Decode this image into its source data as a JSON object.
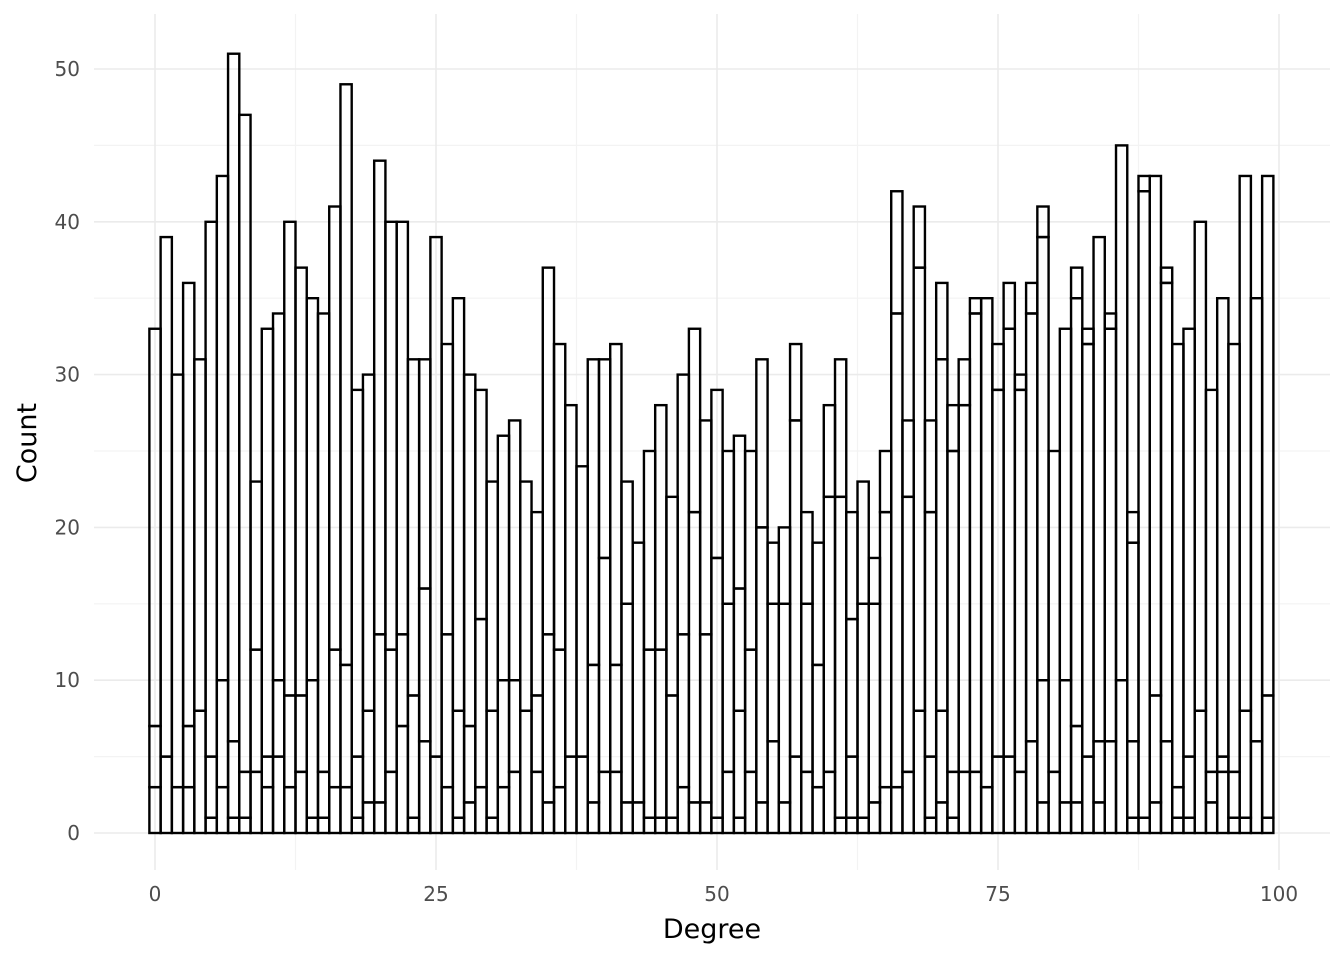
{
  "chart_data": {
    "type": "bar",
    "xlabel": "Degree",
    "ylabel": "Count",
    "xlim": [
      -2.5,
      102
    ],
    "ylim": [
      -2.5,
      53.5
    ],
    "x_ticks": [
      0,
      25,
      50,
      75,
      100
    ],
    "y_ticks": [
      0,
      10,
      20,
      30,
      40,
      50
    ],
    "grid": true,
    "legend": "none",
    "bar_fill": "#ffffff",
    "bar_outline": "#000000",
    "bars": [
      {
        "x": 0,
        "stack": [
          3,
          7,
          33
        ]
      },
      {
        "x": 1,
        "stack": [
          5,
          39
        ]
      },
      {
        "x": 2,
        "stack": [
          3,
          30
        ]
      },
      {
        "x": 3,
        "stack": [
          3,
          7,
          36
        ]
      },
      {
        "x": 4,
        "stack": [
          8,
          31
        ]
      },
      {
        "x": 5,
        "stack": [
          1,
          5,
          40
        ]
      },
      {
        "x": 6,
        "stack": [
          3,
          10,
          43
        ]
      },
      {
        "x": 7,
        "stack": [
          1,
          6,
          51
        ]
      },
      {
        "x": 8,
        "stack": [
          1,
          4,
          47
        ]
      },
      {
        "x": 9,
        "stack": [
          4,
          12,
          23
        ]
      },
      {
        "x": 10,
        "stack": [
          3,
          5,
          33
        ]
      },
      {
        "x": 11,
        "stack": [
          5,
          10,
          34
        ]
      },
      {
        "x": 12,
        "stack": [
          3,
          9,
          40
        ]
      },
      {
        "x": 13,
        "stack": [
          4,
          9,
          37
        ]
      },
      {
        "x": 14,
        "stack": [
          1,
          10,
          35
        ]
      },
      {
        "x": 15,
        "stack": [
          1,
          4,
          34
        ]
      },
      {
        "x": 16,
        "stack": [
          3,
          12,
          41
        ]
      },
      {
        "x": 17,
        "stack": [
          3,
          11,
          49
        ]
      },
      {
        "x": 18,
        "stack": [
          1,
          5,
          29
        ]
      },
      {
        "x": 19,
        "stack": [
          2,
          8,
          30
        ]
      },
      {
        "x": 20,
        "stack": [
          2,
          13,
          44
        ]
      },
      {
        "x": 21,
        "stack": [
          4,
          12,
          40
        ]
      },
      {
        "x": 22,
        "stack": [
          7,
          13,
          40
        ]
      },
      {
        "x": 23,
        "stack": [
          1,
          9,
          31
        ]
      },
      {
        "x": 24,
        "stack": [
          6,
          16,
          31
        ]
      },
      {
        "x": 25,
        "stack": [
          5,
          39
        ]
      },
      {
        "x": 26,
        "stack": [
          3,
          13,
          32
        ]
      },
      {
        "x": 27,
        "stack": [
          1,
          8,
          35
        ]
      },
      {
        "x": 28,
        "stack": [
          2,
          7,
          30
        ]
      },
      {
        "x": 29,
        "stack": [
          3,
          14,
          29
        ]
      },
      {
        "x": 30,
        "stack": [
          1,
          8,
          23
        ]
      },
      {
        "x": 31,
        "stack": [
          3,
          10,
          26
        ]
      },
      {
        "x": 32,
        "stack": [
          4,
          10,
          27
        ]
      },
      {
        "x": 33,
        "stack": [
          8,
          23
        ]
      },
      {
        "x": 34,
        "stack": [
          4,
          9,
          21
        ]
      },
      {
        "x": 35,
        "stack": [
          2,
          13,
          37
        ]
      },
      {
        "x": 36,
        "stack": [
          3,
          12,
          32
        ]
      },
      {
        "x": 37,
        "stack": [
          5,
          28
        ]
      },
      {
        "x": 38,
        "stack": [
          5,
          24
        ]
      },
      {
        "x": 39,
        "stack": [
          2,
          11,
          31
        ]
      },
      {
        "x": 40,
        "stack": [
          4,
          18,
          31
        ]
      },
      {
        "x": 41,
        "stack": [
          4,
          11,
          32
        ]
      },
      {
        "x": 42,
        "stack": [
          2,
          15,
          23
        ]
      },
      {
        "x": 43,
        "stack": [
          2,
          19
        ]
      },
      {
        "x": 44,
        "stack": [
          1,
          12,
          25
        ]
      },
      {
        "x": 45,
        "stack": [
          1,
          12,
          28
        ]
      },
      {
        "x": 46,
        "stack": [
          1,
          9,
          22
        ]
      },
      {
        "x": 47,
        "stack": [
          3,
          13,
          30
        ]
      },
      {
        "x": 48,
        "stack": [
          2,
          21,
          33
        ]
      },
      {
        "x": 49,
        "stack": [
          2,
          13,
          27
        ]
      },
      {
        "x": 50,
        "stack": [
          1,
          18,
          29
        ]
      },
      {
        "x": 51,
        "stack": [
          4,
          15,
          25
        ]
      },
      {
        "x": 52,
        "stack": [
          1,
          8,
          16,
          26
        ]
      },
      {
        "x": 53,
        "stack": [
          4,
          12,
          25
        ]
      },
      {
        "x": 54,
        "stack": [
          2,
          20,
          31
        ]
      },
      {
        "x": 55,
        "stack": [
          6,
          15,
          19
        ]
      },
      {
        "x": 56,
        "stack": [
          2,
          15,
          20
        ]
      },
      {
        "x": 57,
        "stack": [
          5,
          27,
          32
        ]
      },
      {
        "x": 58,
        "stack": [
          4,
          15,
          21
        ]
      },
      {
        "x": 59,
        "stack": [
          3,
          11,
          19
        ]
      },
      {
        "x": 60,
        "stack": [
          4,
          22,
          28
        ]
      },
      {
        "x": 61,
        "stack": [
          1,
          22,
          31
        ]
      },
      {
        "x": 62,
        "stack": [
          1,
          5,
          14,
          21
        ]
      },
      {
        "x": 63,
        "stack": [
          1,
          15,
          23
        ]
      },
      {
        "x": 64,
        "stack": [
          2,
          15,
          18
        ]
      },
      {
        "x": 65,
        "stack": [
          3,
          21,
          25
        ]
      },
      {
        "x": 66,
        "stack": [
          3,
          34,
          42
        ]
      },
      {
        "x": 67,
        "stack": [
          4,
          22,
          27
        ]
      },
      {
        "x": 68,
        "stack": [
          8,
          37,
          41
        ]
      },
      {
        "x": 69,
        "stack": [
          1,
          5,
          21,
          27
        ]
      },
      {
        "x": 70,
        "stack": [
          2,
          8,
          31,
          36
        ]
      },
      {
        "x": 71,
        "stack": [
          1,
          4,
          25,
          28
        ]
      },
      {
        "x": 72,
        "stack": [
          4,
          28,
          31
        ]
      },
      {
        "x": 73,
        "stack": [
          4,
          34,
          35
        ]
      },
      {
        "x": 74,
        "stack": [
          3,
          35
        ]
      },
      {
        "x": 75,
        "stack": [
          5,
          29,
          32
        ]
      },
      {
        "x": 76,
        "stack": [
          5,
          33,
          36
        ]
      },
      {
        "x": 77,
        "stack": [
          4,
          29,
          30
        ]
      },
      {
        "x": 78,
        "stack": [
          6,
          34,
          36
        ]
      },
      {
        "x": 79,
        "stack": [
          2,
          10,
          39,
          41
        ]
      },
      {
        "x": 80,
        "stack": [
          4,
          25
        ]
      },
      {
        "x": 81,
        "stack": [
          2,
          10,
          33
        ]
      },
      {
        "x": 82,
        "stack": [
          2,
          7,
          35,
          37
        ]
      },
      {
        "x": 83,
        "stack": [
          5,
          32,
          33
        ]
      },
      {
        "x": 84,
        "stack": [
          2,
          6,
          39
        ]
      },
      {
        "x": 85,
        "stack": [
          6,
          33,
          34
        ]
      },
      {
        "x": 86,
        "stack": [
          10,
          45
        ]
      },
      {
        "x": 87,
        "stack": [
          1,
          6,
          19,
          21
        ]
      },
      {
        "x": 88,
        "stack": [
          1,
          42,
          43
        ]
      },
      {
        "x": 89,
        "stack": [
          2,
          9,
          43
        ]
      },
      {
        "x": 90,
        "stack": [
          6,
          36,
          37
        ]
      },
      {
        "x": 91,
        "stack": [
          1,
          3,
          32
        ]
      },
      {
        "x": 92,
        "stack": [
          1,
          5,
          33
        ]
      },
      {
        "x": 93,
        "stack": [
          8,
          40
        ]
      },
      {
        "x": 94,
        "stack": [
          2,
          4,
          29
        ]
      },
      {
        "x": 95,
        "stack": [
          4,
          5,
          35
        ]
      },
      {
        "x": 96,
        "stack": [
          1,
          4,
          32
        ]
      },
      {
        "x": 97,
        "stack": [
          1,
          8,
          43
        ]
      },
      {
        "x": 98,
        "stack": [
          6,
          35
        ]
      },
      {
        "x": 99,
        "stack": [
          1,
          9,
          43
        ]
      }
    ]
  }
}
